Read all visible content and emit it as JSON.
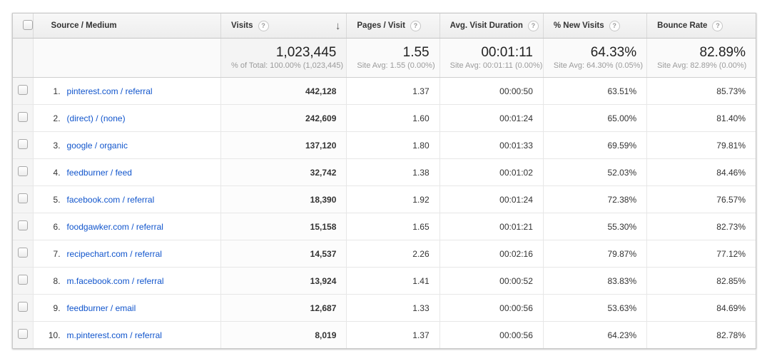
{
  "table": {
    "help_icon": "?",
    "sort_arrow": "↓",
    "columns": {
      "source": "Source / Medium",
      "visits": "Visits",
      "pages_per_visit": "Pages / Visit",
      "avg_visit_duration": "Avg. Visit Duration",
      "pct_new_visits": "% New Visits",
      "bounce_rate": "Bounce Rate"
    },
    "summary": {
      "visits": {
        "value": "1,023,445",
        "sub": "% of Total: 100.00% (1,023,445)"
      },
      "pages": {
        "value": "1.55",
        "sub": "Site Avg: 1.55 (0.00%)"
      },
      "duration": {
        "value": "00:01:11",
        "sub": "Site Avg: 00:01:11 (0.00%)"
      },
      "new_visits": {
        "value": "64.33%",
        "sub": "Site Avg: 64.30% (0.05%)"
      },
      "bounce": {
        "value": "82.89%",
        "sub": "Site Avg: 82.89% (0.00%)"
      }
    },
    "rows": [
      {
        "rank": "1.",
        "source": "pinterest.com / referral",
        "visits": "442,128",
        "pages": "1.37",
        "duration": "00:00:50",
        "new_visits": "63.51%",
        "bounce": "85.73%"
      },
      {
        "rank": "2.",
        "source": "(direct) / (none)",
        "visits": "242,609",
        "pages": "1.60",
        "duration": "00:01:24",
        "new_visits": "65.00%",
        "bounce": "81.40%"
      },
      {
        "rank": "3.",
        "source": "google / organic",
        "visits": "137,120",
        "pages": "1.80",
        "duration": "00:01:33",
        "new_visits": "69.59%",
        "bounce": "79.81%"
      },
      {
        "rank": "4.",
        "source": "feedburner / feed",
        "visits": "32,742",
        "pages": "1.38",
        "duration": "00:01:02",
        "new_visits": "52.03%",
        "bounce": "84.46%"
      },
      {
        "rank": "5.",
        "source": "facebook.com / referral",
        "visits": "18,390",
        "pages": "1.92",
        "duration": "00:01:24",
        "new_visits": "72.38%",
        "bounce": "76.57%"
      },
      {
        "rank": "6.",
        "source": "foodgawker.com / referral",
        "visits": "15,158",
        "pages": "1.65",
        "duration": "00:01:21",
        "new_visits": "55.30%",
        "bounce": "82.73%"
      },
      {
        "rank": "7.",
        "source": "recipechart.com / referral",
        "visits": "14,537",
        "pages": "2.26",
        "duration": "00:02:16",
        "new_visits": "79.87%",
        "bounce": "77.12%"
      },
      {
        "rank": "8.",
        "source": "m.facebook.com / referral",
        "visits": "13,924",
        "pages": "1.41",
        "duration": "00:00:52",
        "new_visits": "83.83%",
        "bounce": "82.85%"
      },
      {
        "rank": "9.",
        "source": "feedburner / email",
        "visits": "12,687",
        "pages": "1.33",
        "duration": "00:00:56",
        "new_visits": "53.63%",
        "bounce": "84.69%"
      },
      {
        "rank": "10.",
        "source": "m.pinterest.com / referral",
        "visits": "8,019",
        "pages": "1.37",
        "duration": "00:00:56",
        "new_visits": "64.23%",
        "bounce": "82.78%"
      }
    ]
  },
  "colors": {
    "link": "#1155cc",
    "header_bg": "#efefef",
    "border": "#e7e7e7"
  }
}
